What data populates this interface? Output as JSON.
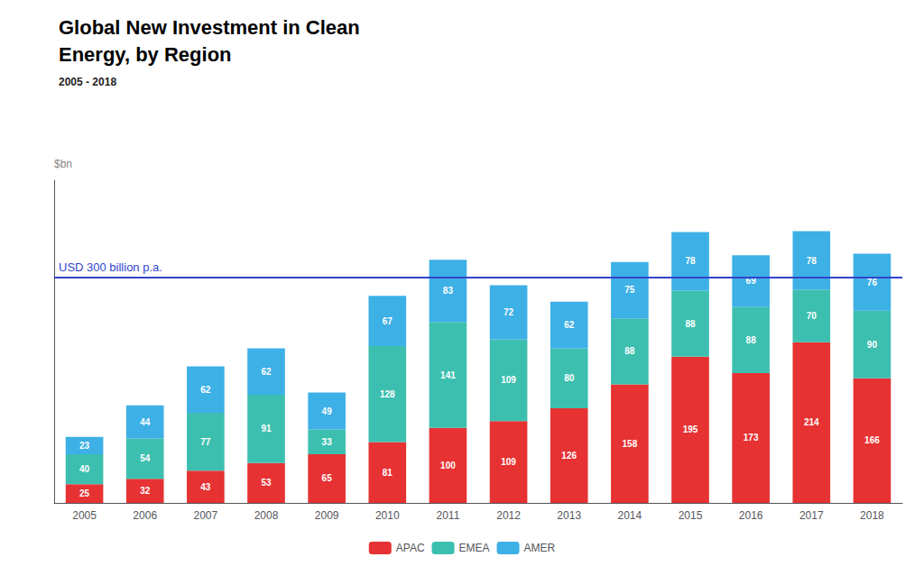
{
  "chart_data": {
    "type": "bar",
    "title": "Global New Investment in Clean\nEnergy, by Region",
    "subtitle": "2005 - 2018",
    "y_label": "$bn",
    "categories": [
      "2005",
      "2006",
      "2007",
      "2008",
      "2009",
      "2010",
      "2011",
      "2012",
      "2013",
      "2014",
      "2015",
      "2016",
      "2017",
      "2018"
    ],
    "series": [
      {
        "name": "APAC",
        "color": "#e63232",
        "values": [
          25,
          32,
          43,
          53,
          65,
          81,
          100,
          109,
          126,
          158,
          195,
          173,
          214,
          166
        ]
      },
      {
        "name": "EMEA",
        "color": "#3dbfb0",
        "values": [
          40,
          54,
          77,
          91,
          33,
          128,
          141,
          109,
          80,
          88,
          88,
          88,
          70,
          90
        ]
      },
      {
        "name": "AMER",
        "color": "#3db0e6",
        "values": [
          23,
          44,
          62,
          62,
          49,
          67,
          83,
          72,
          62,
          75,
          78,
          69,
          78,
          76
        ]
      }
    ],
    "ylim": [
      0,
      430
    ],
    "stacked": true,
    "data_labels": true,
    "grid": false,
    "legend": "bottom",
    "tick_labels": "x",
    "annotations": [
      {
        "y": 300,
        "text": "USD 300 billion p.a.",
        "color": "#3344cc"
      }
    ]
  }
}
